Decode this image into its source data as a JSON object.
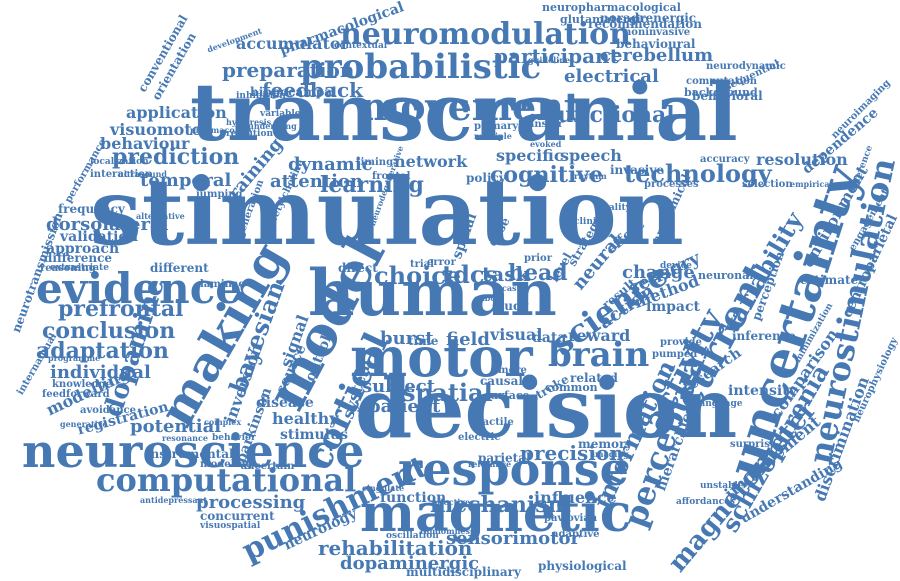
{
  "colors": {
    "word": "#4679b4",
    "background": "#ffffff"
  },
  "words": [
    "stimulation",
    "transcranial",
    "decision",
    "human",
    "motor",
    "magnetic",
    "response",
    "uncertainty",
    "neuroscience",
    "model",
    "making",
    "evidence",
    "movement",
    "computational",
    "probabilistic",
    "neuromodulation",
    "cortical",
    "current",
    "neurostimulation",
    "perceptual",
    "brain",
    "activity",
    "science",
    "technology",
    "punishment",
    "dopamine",
    "variability",
    "magnetometer",
    "information",
    "schizophrenia",
    "learning",
    "conclusion",
    "prefrontal",
    "adaptation",
    "choice",
    "tdcs",
    "task",
    "head",
    "mechanism",
    "rehabilitation",
    "sensorimotor",
    "dopaminergic",
    "precision",
    "functional",
    "feedback",
    "preparation",
    "participant",
    "electrical",
    "cerebellum",
    "cognitive",
    "spatial",
    "patient",
    "subject",
    "prediction",
    "temporal",
    "visuomotor",
    "application",
    "behaviour",
    "attention",
    "dynamic",
    "training",
    "accumulator",
    "network",
    "specific",
    "speech",
    "neural",
    "change",
    "sensory",
    "method",
    "impact",
    "result",
    "field",
    "burst",
    "visual",
    "data",
    "reward",
    "action",
    "research",
    "intensity",
    "comparison",
    "environment",
    "dependence",
    "centroparietal",
    "discrimination",
    "improvement",
    "understanding",
    "influence",
    "function",
    "processing",
    "modelling",
    "individual",
    "potential",
    "registration",
    "healthy",
    "disease",
    "stimulus",
    "modeling",
    "neurology",
    "instrumental",
    "concurrent",
    "visuospatial",
    "memory",
    "parietal",
    "stroke",
    "common",
    "related",
    "resolution",
    "noradrenergic",
    "glutamatergic",
    "neuropharmacological",
    "pharmacological",
    "recommendation",
    "behavioural",
    "noninvasive",
    "neurodynamic",
    "computation",
    "background",
    "sequential",
    "behavioral",
    "hippocampal",
    "contextual",
    "inhibition",
    "conventional",
    "orientation",
    "development",
    "guideline",
    "primary",
    "multiple",
    "transfer",
    "evoked",
    "ultrasound",
    "interaction",
    "localization",
    "performance",
    "frequency",
    "dorsolateral",
    "validation",
    "approach",
    "difference",
    "reasoning",
    "neurotransmission",
    "internamual",
    "knowledge",
    "feedforward",
    "avoidance",
    "antidepressant",
    "generative",
    "resonance",
    "behavior",
    "complex",
    "multidisciplinary",
    "physiological",
    "adaptive",
    "oscillation",
    "randomness",
    "pavlovian",
    "affordances",
    "unstable",
    "perception",
    "inference",
    "estimate",
    "neuronal",
    "device",
    "invasive",
    "processes",
    "selection",
    "accuracy",
    "empirical",
    "neuroimaging",
    "engagement",
    "reference",
    "neurophysiology",
    "uncertain",
    "bayesian",
    "inversion",
    "parkinson",
    "source",
    "signal",
    "control",
    "system",
    "laminae",
    "different",
    "error",
    "trial",
    "direct",
    "state",
    "prior",
    "level",
    "strategy",
    "effect",
    "anatomical",
    "spinal",
    "dose",
    "clinical",
    "quality",
    "timing",
    "jumping",
    "retention",
    "surprise",
    "minimization",
    "tactile",
    "electric",
    "causal",
    "surface",
    "more",
    "cast",
    "time",
    "hierarchical",
    "pumped",
    "provide",
    "language",
    "effective",
    "gabon",
    "relevance",
    "imaging",
    "frontal",
    "policy",
    "study",
    "neurodegenerative",
    "acetylcholine",
    "generation",
    "variable",
    "underlying",
    "hysteresis",
    "alternative",
    "extrastriate",
    "programme",
    "pharmacology",
    "rhythm",
    "cingulate"
  ]
}
